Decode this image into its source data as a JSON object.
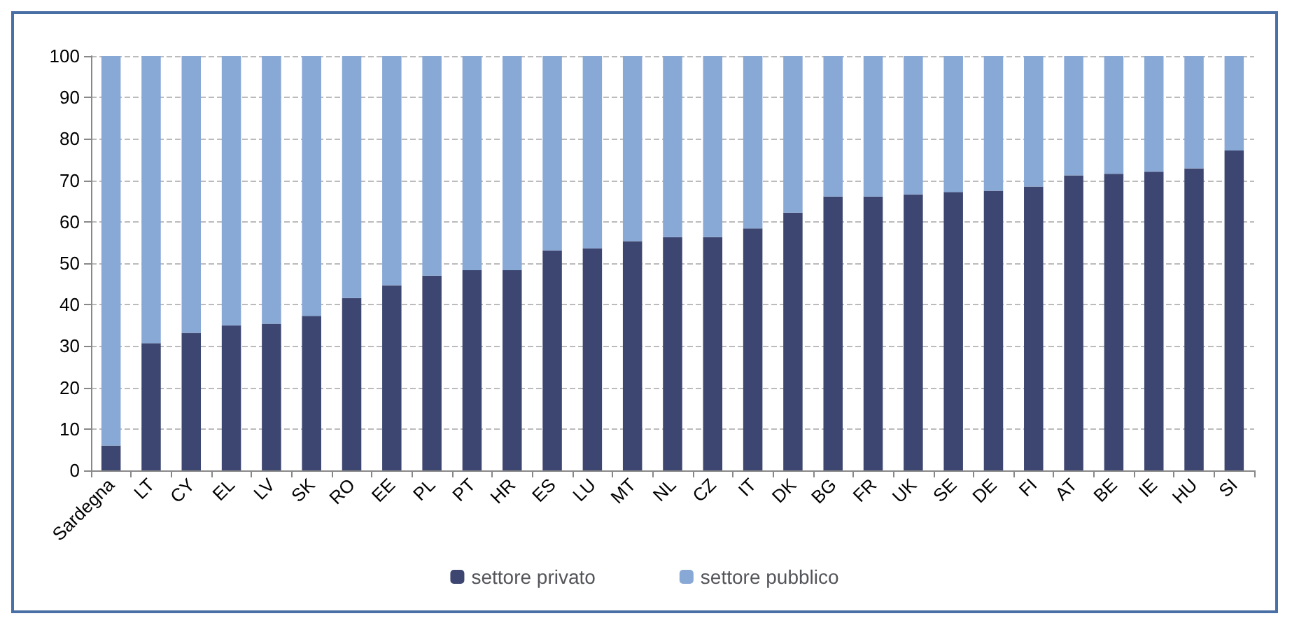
{
  "chart_data": {
    "type": "bar",
    "stacked": true,
    "categories": [
      "Sardegna",
      "LT",
      "CY",
      "EL",
      "LV",
      "SK",
      "RO",
      "EE",
      "PL",
      "PT",
      "HR",
      "ES",
      "LU",
      "MT",
      "NL",
      "CZ",
      "IT",
      "DK",
      "BG",
      "FR",
      "UK",
      "SE",
      "DE",
      "FI",
      "AT",
      "BE",
      "IE",
      "HU",
      "SI"
    ],
    "series": [
      {
        "name": "settore privato",
        "color": "#3d4670",
        "values": [
          6,
          30.7,
          33.2,
          35,
          35.4,
          37.3,
          41.6,
          44.7,
          47,
          48.3,
          48.3,
          53.1,
          53.6,
          55.3,
          56.3,
          56.3,
          58.4,
          62.2,
          66.1,
          66.1,
          66.6,
          67.2,
          67.5,
          68.5,
          71.2,
          71.6,
          72.1,
          72.9,
          77.2
        ]
      },
      {
        "name": "settore pubblico",
        "color": "#88a8d6",
        "values": [
          94,
          69.3,
          66.8,
          65,
          64.6,
          62.7,
          58.4,
          55.3,
          53,
          51.7,
          51.7,
          46.9,
          46.4,
          44.7,
          43.7,
          43.7,
          41.6,
          37.8,
          33.9,
          33.9,
          33.4,
          32.8,
          32.5,
          31.5,
          28.8,
          28.4,
          27.9,
          27.1,
          22.8
        ]
      }
    ],
    "ylim": [
      0,
      100
    ],
    "yticks": [
      0,
      10,
      20,
      30,
      40,
      50,
      60,
      70,
      80,
      90,
      100
    ],
    "grid": "y",
    "legend": "bottom"
  }
}
